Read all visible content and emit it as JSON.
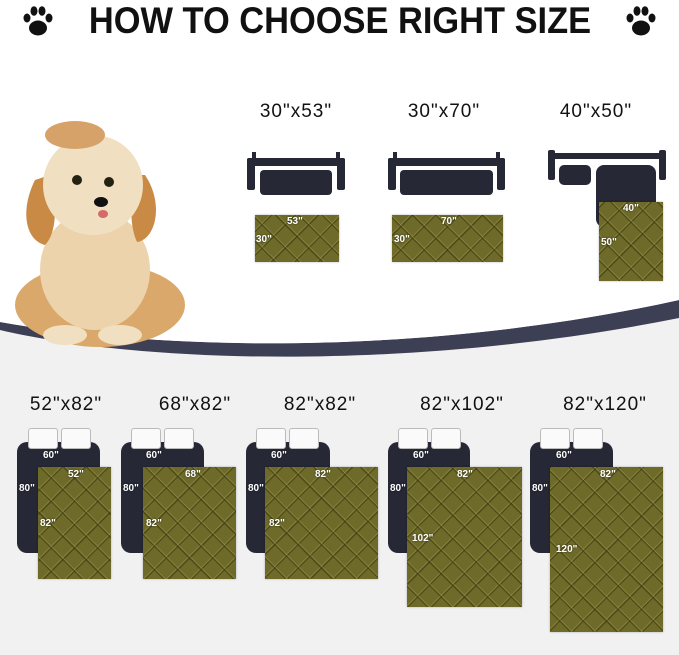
{
  "title": "HOW TO CHOOSE RIGHT SIZE",
  "icons": {
    "left": "paw-icon",
    "right": "paw-icon"
  },
  "colors": {
    "mat": "#6e6b2a",
    "furniture": "#262836",
    "swoosh": "#3d3f55"
  },
  "sofa_sizes": [
    {
      "label": "30\"x53\"",
      "width": "53\"",
      "height": "30\""
    },
    {
      "label": "30\"x70\"",
      "width": "70\"",
      "height": "30\""
    },
    {
      "label": "40\"x50\"",
      "width": "40\"",
      "height": "50\""
    }
  ],
  "bed_sizes": [
    {
      "label": "52\"x82\"",
      "bed_width": "60\"",
      "bed_length": "80\"",
      "width": "52\"",
      "height": "82\""
    },
    {
      "label": "68\"x82\"",
      "bed_width": "60\"",
      "bed_length": "80\"",
      "width": "68\"",
      "height": "82\""
    },
    {
      "label": "82\"x82\"",
      "bed_width": "60\"",
      "bed_length": "80\"",
      "width": "82\"",
      "height": "82\""
    },
    {
      "label": "82\"x102\"",
      "bed_width": "60\"",
      "bed_length": "80\"",
      "width": "82\"",
      "height": "102\""
    },
    {
      "label": "82\"x120\"",
      "bed_width": "60\"",
      "bed_length": "80\"",
      "width": "82\"",
      "height": "120\""
    }
  ]
}
